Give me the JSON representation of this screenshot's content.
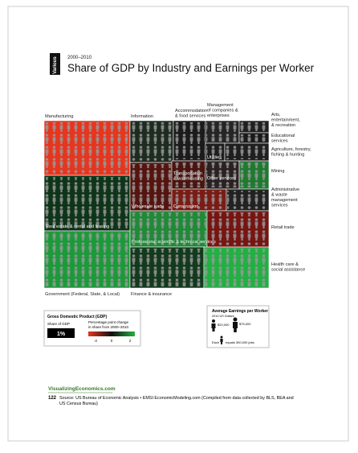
{
  "header": {
    "tab": "Various",
    "years": "2000–2010",
    "title": "Share of GDP by Industry and Earnings per Worker"
  },
  "tiles": [
    {
      "label": [
        "Manufacturing"
      ],
      "color": "#e5361f"
    },
    {
      "label": [
        "Real estate & rental and leasing"
      ],
      "color": "#0e3519"
    },
    {
      "label": [
        "Government (Federal, State, & Local)"
      ],
      "color": "#1c9a3a"
    },
    {
      "label": [
        "Information"
      ],
      "color": "#1d2c1f"
    },
    {
      "label": [
        "Wholesale trade"
      ],
      "color": "#551410"
    },
    {
      "label": [
        "Accommodation",
        "& food services"
      ],
      "color": "#1b1b1b"
    },
    {
      "label": [
        "Management",
        "of companies &",
        "enterprises"
      ],
      "color": "#252525"
    },
    {
      "label": [
        "Utilities"
      ],
      "color": "#1e1e1e"
    },
    {
      "label": [
        "Arts,",
        "entertainment,",
        "& recreation"
      ],
      "color": "#202020"
    },
    {
      "label": [
        "Educational",
        "services"
      ],
      "color": "#1a1a1a"
    },
    {
      "label": [
        "Agriculture, forestry,",
        "fishing & hunting"
      ],
      "color": "#1f1f1f"
    },
    {
      "label": [
        "Transportation",
        "& warehousing"
      ],
      "color": "#4a1410"
    },
    {
      "label": [
        "Other services"
      ],
      "color": "#2a2222"
    },
    {
      "label": [
        "Mining"
      ],
      "color": "#1f7a30"
    },
    {
      "label": [
        "Construction"
      ],
      "color": "#7a1c15"
    },
    {
      "label": [
        "Administrative",
        "& waste",
        "management",
        "services"
      ],
      "color": "#222222"
    },
    {
      "label": [
        "Professional scientific & technical services"
      ],
      "color": "#1f8a37"
    },
    {
      "label": [
        "Retail trade"
      ],
      "color": "#761512"
    },
    {
      "label": [
        "Finance & insurance"
      ],
      "color": "#143a1e"
    },
    {
      "label": [
        "Health care &",
        "social assistance"
      ],
      "color": "#22b043"
    }
  ],
  "legend_gdp": {
    "title": "Gross Domestic Product (GDP)",
    "share_label": "Share of GDP",
    "share_box": "1%",
    "change_label": [
      "Percentage point change",
      "in share from 2000–2010"
    ],
    "scale": [
      "-2",
      "0",
      "2"
    ]
  },
  "legend_earnings": {
    "title": "Average Earnings per Worker",
    "subtitle": "2010 US Dollars",
    "low": "$20,000",
    "high": "$75,000",
    "each": "Each",
    "equals": "equals 300,000 jobs"
  },
  "footer": {
    "site": "VisualizingEconomics.com",
    "page": "122",
    "source": [
      "Source: US Bureau of Economic Analysis • EMSI EconomicModeling.com (Compiled from data collected by BLS, BEA and",
      "US Census Bureau)"
    ]
  }
}
